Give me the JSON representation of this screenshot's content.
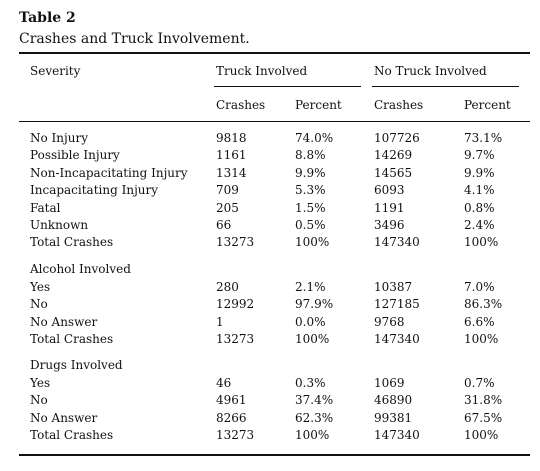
{
  "table": {
    "label": "Table 2",
    "caption": "Crashes and Truck Involvement.",
    "header": {
      "severity": "Severity",
      "group_truck": "Truck Involved",
      "group_no_truck": "No Truck Involved",
      "sub": [
        "Crashes",
        "Percent",
        "Crashes",
        "Percent"
      ]
    },
    "sections": [
      {
        "title": "",
        "rows": [
          [
            "No Injury",
            "9818",
            "74.0%",
            "107726",
            "73.1%"
          ],
          [
            "Possible Injury",
            "1161",
            "8.8%",
            "14269",
            "9.7%"
          ],
          [
            "Non-Incapacitating Injury",
            "1314",
            "9.9%",
            "14565",
            "9.9%"
          ],
          [
            "Incapacitating Injury",
            "709",
            "5.3%",
            "6093",
            "4.1%"
          ],
          [
            "Fatal",
            "205",
            "1.5%",
            "1191",
            "0.8%"
          ],
          [
            "Unknown",
            "66",
            "0.5%",
            "3496",
            "2.4%"
          ],
          [
            "Total Crashes",
            "13273",
            "100%",
            "147340",
            "100%"
          ]
        ]
      },
      {
        "title": "Alcohol Involved",
        "rows": [
          [
            "Yes",
            "280",
            "2.1%",
            "10387",
            "7.0%"
          ],
          [
            "No",
            "12992",
            "97.9%",
            "127185",
            "86.3%"
          ],
          [
            "No Answer",
            "1",
            "0.0%",
            "9768",
            "6.6%"
          ],
          [
            "Total Crashes",
            "13273",
            "100%",
            "147340",
            "100%"
          ]
        ]
      },
      {
        "title": "Drugs Involved",
        "rows": [
          [
            "Yes",
            "46",
            "0.3%",
            "1069",
            "0.7%"
          ],
          [
            "No",
            "4961",
            "37.4%",
            "46890",
            "31.8%"
          ],
          [
            "No Answer",
            "8266",
            "62.3%",
            "99381",
            "67.5%"
          ],
          [
            "Total Crashes",
            "13273",
            "100%",
            "147340",
            "100%"
          ]
        ]
      }
    ]
  }
}
